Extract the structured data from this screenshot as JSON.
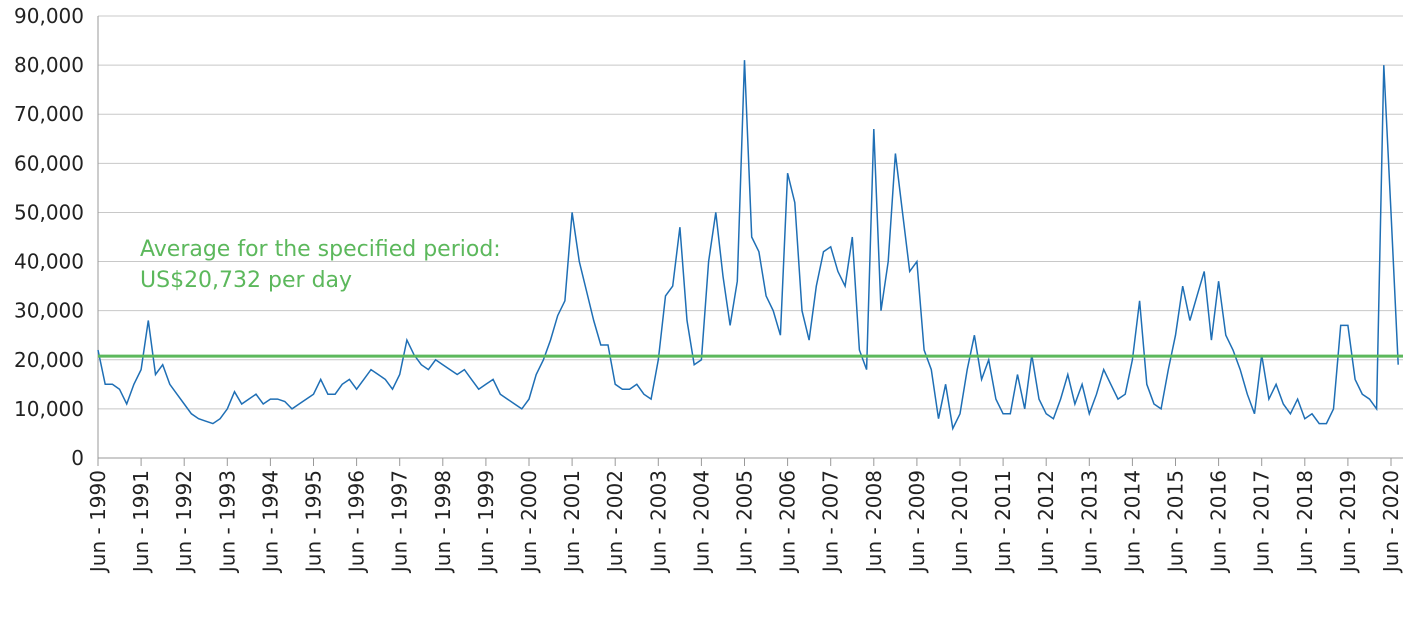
{
  "chart_data": {
    "type": "line",
    "annotation": [
      "Average for the specified period:",
      "US$20,732 per day"
    ],
    "average": 20732,
    "average_color": "#5cb85c",
    "categories": [
      "Jun - 1990",
      null,
      null,
      null,
      null,
      null,
      "Jun - 1991",
      null,
      null,
      null,
      null,
      null,
      "Jun - 1992",
      null,
      null,
      null,
      null,
      null,
      "Jun - 1993",
      null,
      null,
      null,
      null,
      null,
      "Jun - 1994",
      null,
      null,
      null,
      null,
      null,
      "Jun - 1995",
      null,
      null,
      null,
      null,
      null,
      "Jun - 1996",
      null,
      null,
      null,
      null,
      null,
      "Jun - 1997",
      null,
      null,
      null,
      null,
      null,
      "Jun - 1998",
      null,
      null,
      null,
      null,
      null,
      "Jun - 1999",
      null,
      null,
      null,
      null,
      null,
      "Jun - 2000",
      null,
      null,
      null,
      null,
      null,
      "Jun - 2001",
      null,
      null,
      null,
      null,
      null,
      "Jun - 2002",
      null,
      null,
      null,
      null,
      null,
      "Jun - 2003",
      null,
      null,
      null,
      null,
      null,
      "Jun - 2004",
      null,
      null,
      null,
      null,
      null,
      "Jun - 2005",
      null,
      null,
      null,
      null,
      null,
      "Jun - 2006",
      null,
      null,
      null,
      null,
      null,
      "Jun - 2007",
      null,
      null,
      null,
      null,
      null,
      "Jun - 2008",
      null,
      null,
      null,
      null,
      null,
      "Jun - 2009",
      null,
      null,
      null,
      null,
      null,
      "Jun - 2010",
      null,
      null,
      null,
      null,
      null,
      "Jun - 2011",
      null,
      null,
      null,
      null,
      null,
      "Jun - 2012",
      null,
      null,
      null,
      null,
      null,
      "Jun - 2013",
      null,
      null,
      null,
      null,
      null,
      "Jun - 2014",
      null,
      null,
      null,
      null,
      null,
      "Jun - 2015",
      null,
      null,
      null,
      null,
      null,
      "Jun - 2016",
      null,
      null,
      null,
      null,
      null,
      "Jun - 2017",
      null,
      null,
      null,
      null,
      null,
      "Jun - 2018",
      null,
      null,
      null,
      null,
      null,
      "Jun - 2019",
      null,
      null,
      null,
      null,
      null,
      "Jun - 2020",
      null
    ],
    "series": [
      {
        "color": "#1f6fb5",
        "values": [
          22000,
          15000,
          15000,
          14000,
          11000,
          15000,
          18000,
          28000,
          17000,
          19000,
          15000,
          13000,
          11000,
          9000,
          8000,
          7500,
          7000,
          8000,
          10000,
          13500,
          11000,
          12000,
          13000,
          11000,
          12000,
          12000,
          11500,
          10000,
          11000,
          12000,
          13000,
          16000,
          13000,
          13000,
          15000,
          16000,
          14000,
          16000,
          18000,
          17000,
          16000,
          14000,
          17000,
          24000,
          21000,
          19000,
          18000,
          20000,
          19000,
          18000,
          17000,
          18000,
          16000,
          14000,
          15000,
          16000,
          13000,
          12000,
          11000,
          10000,
          12000,
          17000,
          20000,
          24000,
          29000,
          32000,
          50000,
          40000,
          34000,
          28000,
          23000,
          23000,
          15000,
          14000,
          14000,
          15000,
          13000,
          12000,
          20000,
          33000,
          35000,
          47000,
          28000,
          19000,
          20000,
          40000,
          50000,
          37000,
          27000,
          36000,
          81000,
          45000,
          42000,
          33000,
          30000,
          25000,
          58000,
          52000,
          30000,
          24000,
          35000,
          42000,
          43000,
          38000,
          35000,
          45000,
          22000,
          18000,
          67000,
          30000,
          40000,
          62000,
          50000,
          38000,
          40000,
          22000,
          18000,
          8000,
          15000,
          6000,
          9000,
          18000,
          25000,
          16000,
          20000,
          12000,
          9000,
          9000,
          17000,
          10000,
          21000,
          12000,
          9000,
          8000,
          12000,
          17000,
          11000,
          15000,
          9000,
          13000,
          18000,
          15000,
          12000,
          13000,
          20000,
          32000,
          15000,
          11000,
          10000,
          18000,
          25000,
          35000,
          28000,
          33000,
          38000,
          24000,
          36000,
          25000,
          22000,
          18000,
          13000,
          9000,
          21000,
          12000,
          15000,
          11000,
          9000,
          12000,
          8000,
          9000,
          7000,
          7000,
          10000,
          27000,
          27000,
          16000,
          13000,
          12000,
          10000,
          80000,
          50000,
          19000
        ]
      }
    ],
    "ylim": [
      0,
      90000
    ],
    "yticks": [
      0,
      {
        "value": 10000,
        "label": "10,000"
      },
      {
        "value": 20000,
        "label": "20,000"
      },
      {
        "value": 30000,
        "label": "30,000"
      },
      {
        "value": 40000,
        "label": "40,000"
      },
      {
        "value": 50000,
        "label": "50,000"
      },
      {
        "value": 60000,
        "label": "60,000"
      },
      {
        "value": 70000,
        "label": "70,000"
      },
      {
        "value": 80000,
        "label": "80,000"
      },
      {
        "value": 90000,
        "label": "90,000"
      }
    ],
    "grid": true
  }
}
